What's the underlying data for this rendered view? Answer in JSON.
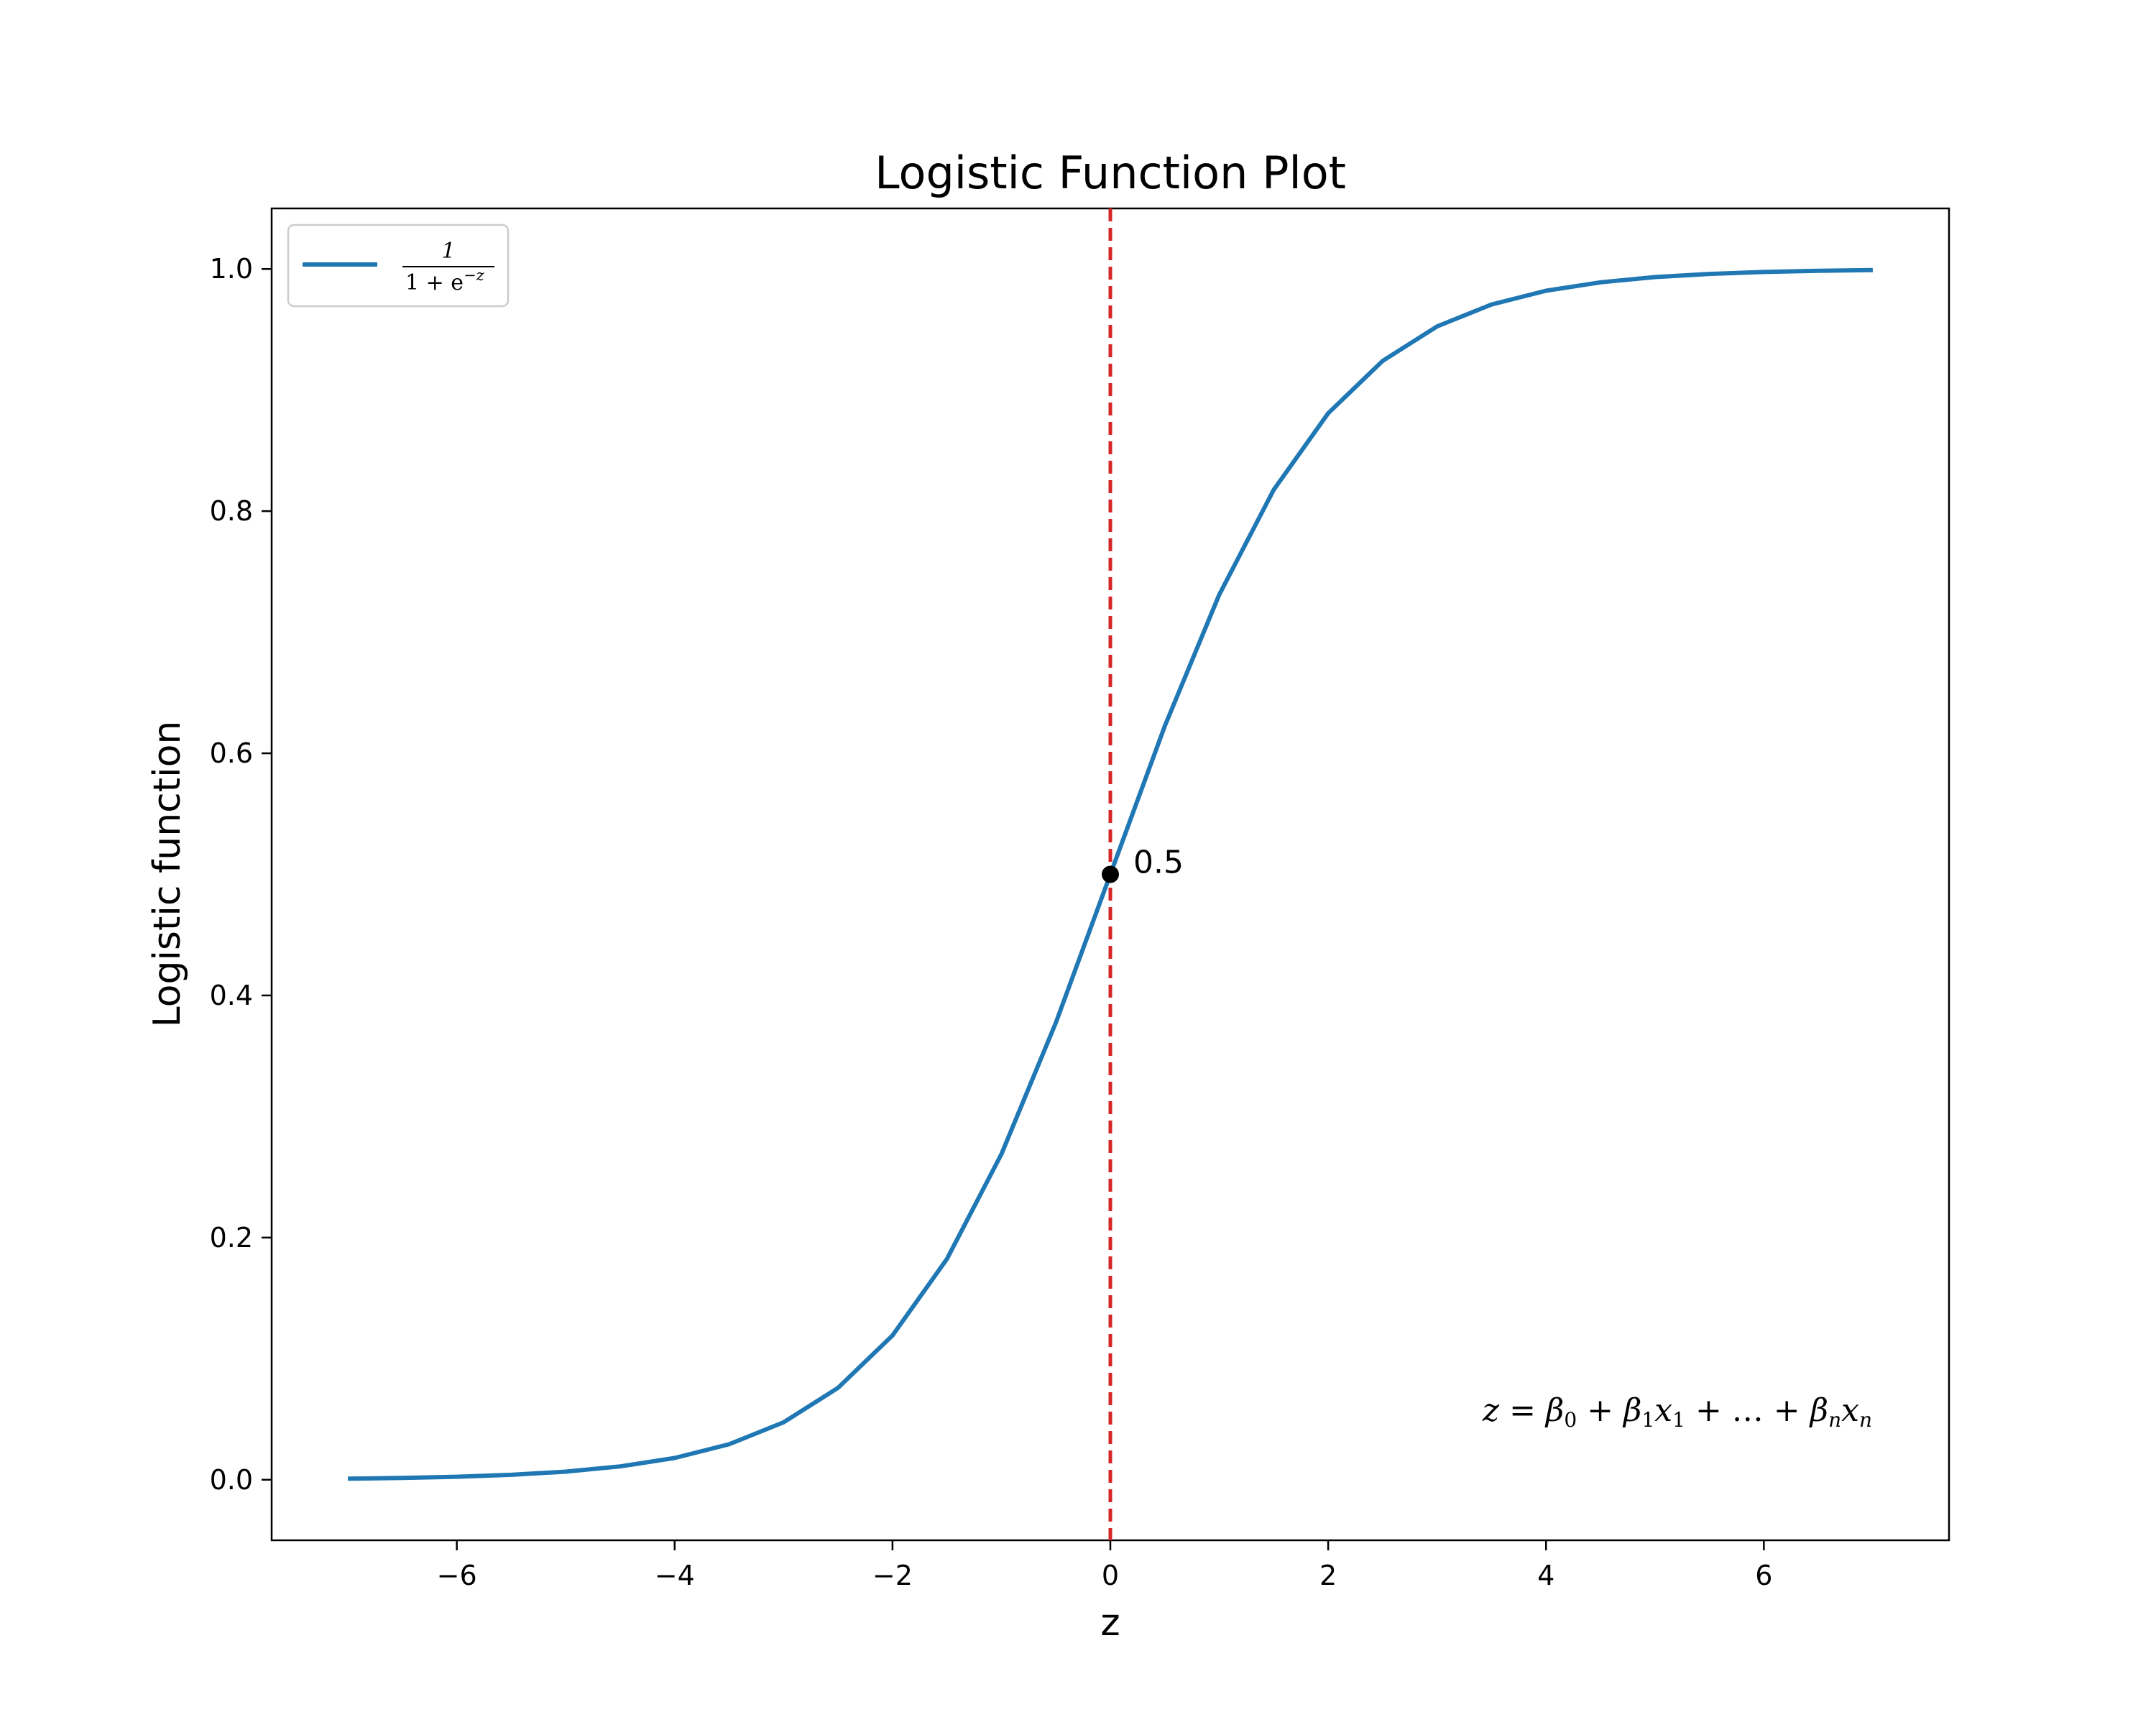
{
  "chart_data": {
    "type": "line",
    "title": "Logistic Function Plot",
    "xlabel": "z",
    "ylabel": "Logistic function",
    "xlim": [
      -7.7,
      7.7
    ],
    "ylim": [
      -0.05,
      1.05
    ],
    "x_ticks": [
      -6,
      -4,
      -2,
      0,
      2,
      4,
      6
    ],
    "x_tick_labels": [
      "−6",
      "−4",
      "−2",
      "0",
      "2",
      "4",
      "6"
    ],
    "y_ticks": [
      0.0,
      0.2,
      0.4,
      0.6,
      0.8,
      1.0
    ],
    "y_tick_labels": [
      "0.0",
      "0.2",
      "0.4",
      "0.6",
      "0.8",
      "1.0"
    ],
    "grid": false,
    "series": [
      {
        "name": "1/(1+e^-z)",
        "color": "#1f77b4",
        "x": [
          -7,
          -6.5,
          -6,
          -5.5,
          -5,
          -4.5,
          -4,
          -3.5,
          -3,
          -2.5,
          -2,
          -1.5,
          -1,
          -0.5,
          0,
          0.5,
          1,
          1.5,
          2,
          2.5,
          3,
          3.5,
          4,
          4.5,
          5,
          5.5,
          6,
          6.5,
          7
        ],
        "y": [
          0.0009,
          0.0015,
          0.0025,
          0.0041,
          0.0067,
          0.011,
          0.018,
          0.0293,
          0.0474,
          0.0759,
          0.1192,
          0.1824,
          0.2689,
          0.3775,
          0.5,
          0.6225,
          0.7311,
          0.8176,
          0.8808,
          0.9241,
          0.9526,
          0.9707,
          0.982,
          0.989,
          0.9933,
          0.9959,
          0.9975,
          0.9985,
          0.9991
        ]
      }
    ],
    "legend": {
      "location": "upper-left",
      "numerator": "1",
      "denominator": "1 + e",
      "exponent": "−z"
    },
    "vline": {
      "x": 0,
      "color": "#d62728",
      "style": "dashed"
    },
    "marker_point": {
      "x": 0,
      "y": 0.5,
      "color": "#000000"
    },
    "annotations": {
      "point_label": "0.5",
      "formula": {
        "z": "z",
        "eq": " = ",
        "b": "β",
        "s0": "0",
        "s1": "1",
        "sn": "n",
        "plus": " + ",
        "x": "x",
        "dots": "…"
      }
    }
  }
}
